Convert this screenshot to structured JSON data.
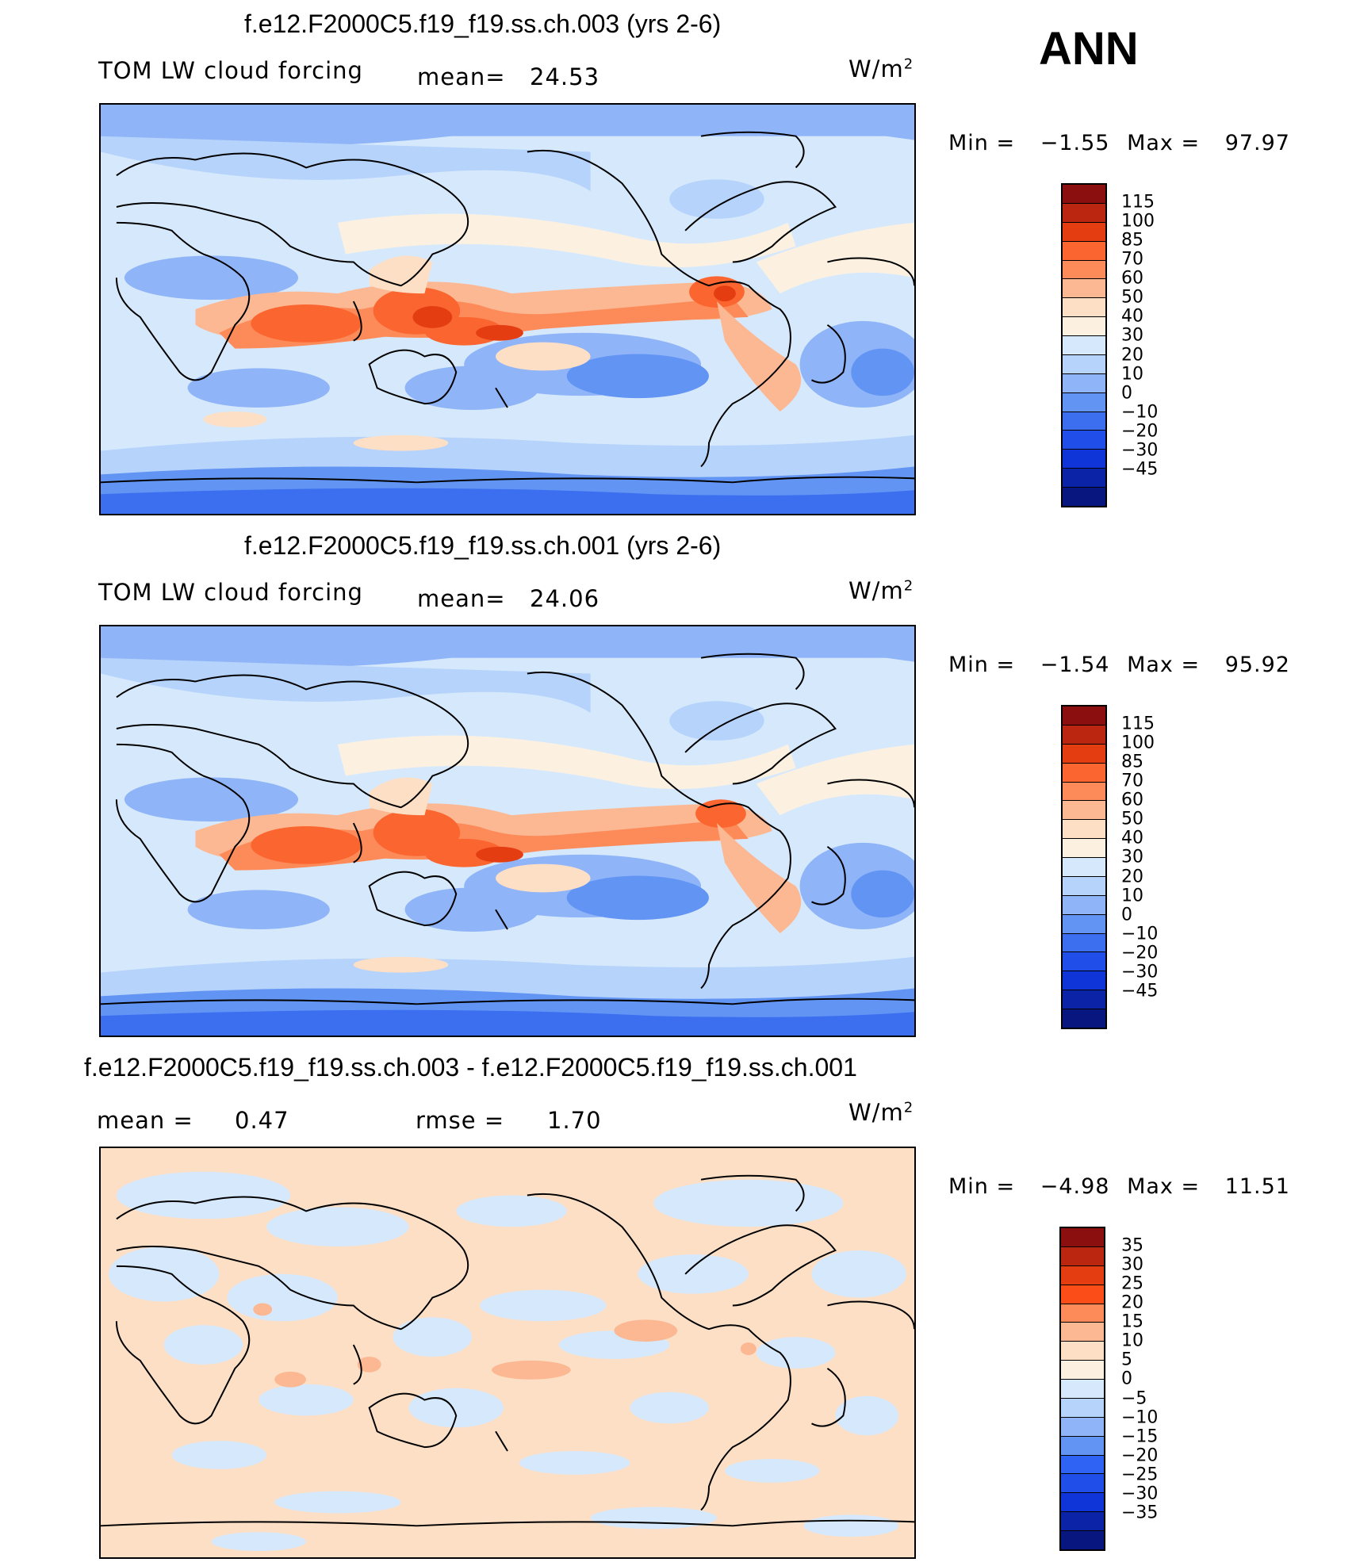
{
  "season": "ANN",
  "panels": [
    {
      "title": "f.e12.F2000C5.f19_f19.ss.ch.003 (yrs 2-6)",
      "left_label": "TOM LW cloud forcing",
      "stat1_label": "mean=",
      "stat1_value": "24.53",
      "stat2_label": "",
      "stat2_value": "",
      "units": "W/m",
      "units_sup": "2",
      "min_label": "Min =",
      "min_value": "−1.55",
      "max_label": "Max =",
      "max_value": "97.97",
      "colorbar": {
        "colors": [
          "#8b0f0f",
          "#bb2610",
          "#e53d12",
          "#fb6530",
          "#fd8b5a",
          "#fcb892",
          "#fddfc6",
          "#fcf1e1",
          "#d6e9fc",
          "#b6d3fb",
          "#8fb4f8",
          "#6294f4",
          "#3c6ef0",
          "#1f4ee8",
          "#0f35d8",
          "#0b23a6",
          "#081680"
        ],
        "labels": [
          "115",
          "100",
          "85",
          "70",
          "60",
          "50",
          "40",
          "30",
          "20",
          "10",
          "0",
          "−10",
          "−20",
          "−30",
          "−45"
        ]
      }
    },
    {
      "title": "f.e12.F2000C5.f19_f19.ss.ch.001 (yrs 2-6)",
      "left_label": "TOM LW cloud forcing",
      "stat1_label": "mean=",
      "stat1_value": "24.06",
      "stat2_label": "",
      "stat2_value": "",
      "units": "W/m",
      "units_sup": "2",
      "min_label": "Min =",
      "min_value": "−1.54",
      "max_label": "Max =",
      "max_value": "95.92",
      "colorbar": {
        "colors": [
          "#8b0f0f",
          "#bb2610",
          "#e53d12",
          "#fb6530",
          "#fd8b5a",
          "#fcb892",
          "#fddfc6",
          "#fcf1e1",
          "#d6e9fc",
          "#b6d3fb",
          "#8fb4f8",
          "#6294f4",
          "#3c6ef0",
          "#1f4ee8",
          "#0f35d8",
          "#0b23a6",
          "#081680"
        ],
        "labels": [
          "115",
          "100",
          "85",
          "70",
          "60",
          "50",
          "40",
          "30",
          "20",
          "10",
          "0",
          "−10",
          "−20",
          "−30",
          "−45"
        ]
      }
    },
    {
      "title": "f.e12.F2000C5.f19_f19.ss.ch.003 - f.e12.F2000C5.f19_f19.ss.ch.001",
      "left_label": "",
      "stat1_label": "mean =",
      "stat1_value": "0.47",
      "stat2_label": "rmse =",
      "stat2_value": "1.70",
      "units": "W/m",
      "units_sup": "2",
      "min_label": "Min =",
      "min_value": "−4.98",
      "max_label": "Max =",
      "max_value": "11.51",
      "colorbar": {
        "colors": [
          "#8b0f0f",
          "#bb2610",
          "#e53d12",
          "#fb4d18",
          "#fd8b5a",
          "#fcb892",
          "#fddfc6",
          "#fcf1e1",
          "#d6e9fc",
          "#b6d3fb",
          "#8fb4f8",
          "#6294f4",
          "#2f63f4",
          "#1f4ee8",
          "#0f35d8",
          "#0b23a6",
          "#081680"
        ],
        "labels": [
          "35",
          "30",
          "25",
          "20",
          "15",
          "10",
          "5",
          "0",
          "−5",
          "−10",
          "−15",
          "−20",
          "−25",
          "−30",
          "−35"
        ]
      }
    }
  ],
  "map": {
    "projection": "cylindrical equidistant, centered 180°",
    "features": [
      "coastlines"
    ]
  }
}
